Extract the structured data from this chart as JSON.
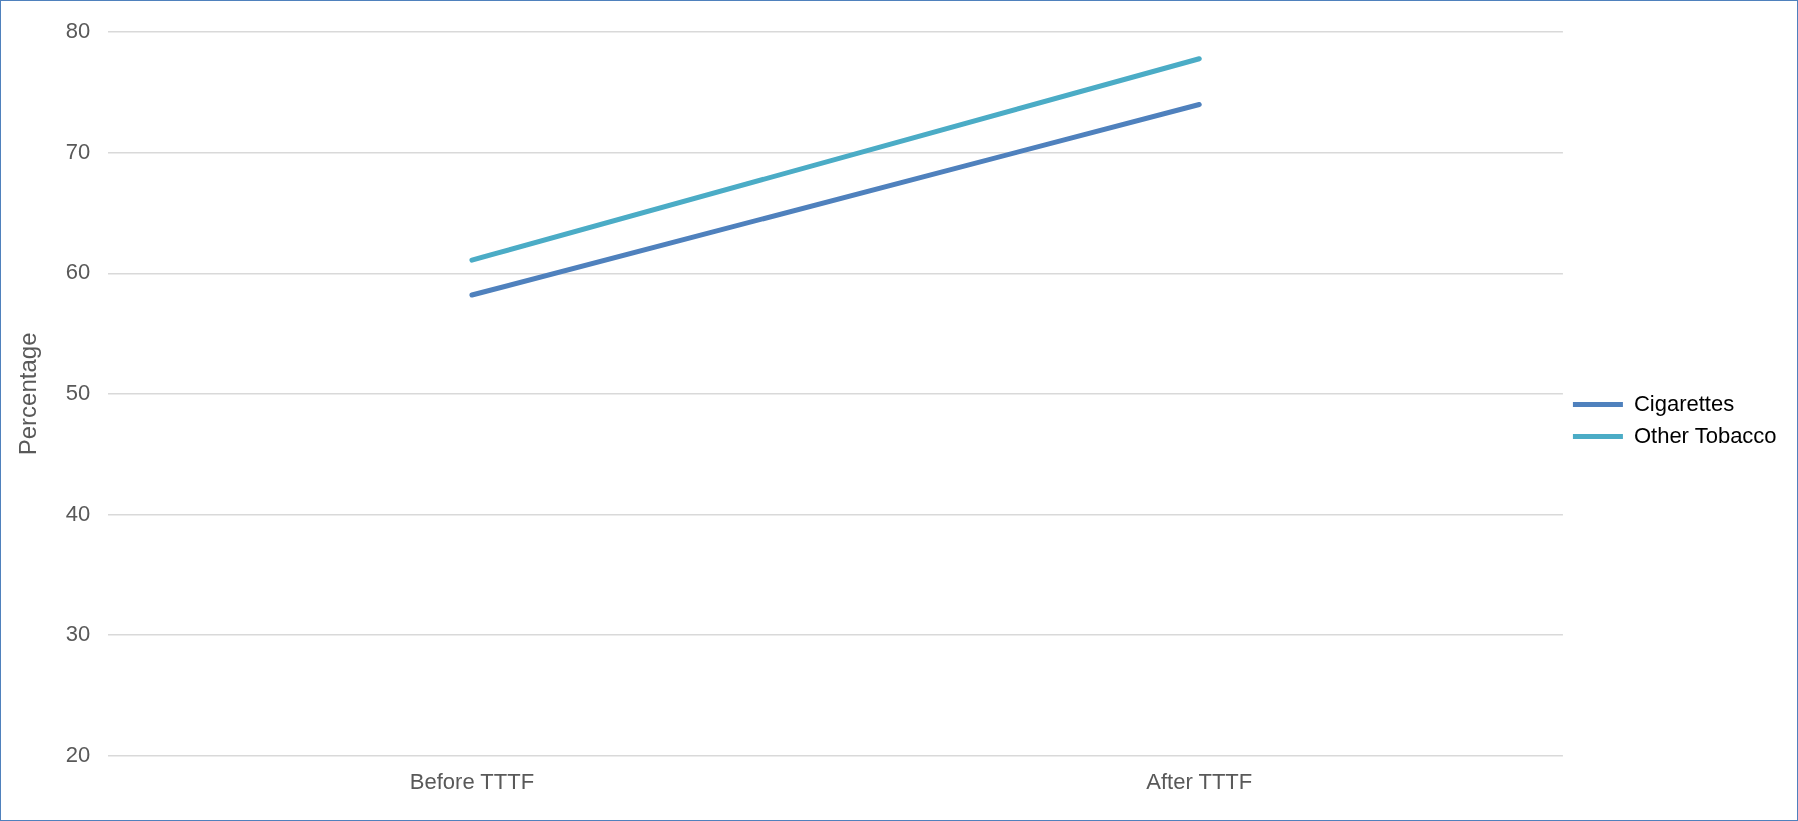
{
  "chart_data": {
    "type": "line",
    "ylabel": "Percentage",
    "categories": [
      "Before TTTF",
      "After TTTF"
    ],
    "series": [
      {
        "name": "Cigarettes",
        "color": "#4f81bd",
        "values": [
          58.2,
          74.0
        ]
      },
      {
        "name": "Other Tobacco",
        "color": "#4bacc6",
        "values": [
          61.1,
          77.8
        ]
      }
    ],
    "ylim": [
      20,
      80
    ],
    "yticks": [
      20,
      30,
      40,
      50,
      60,
      70,
      80
    ],
    "grid": "y",
    "legend": "right",
    "marker": "none",
    "line_style": "solid"
  }
}
